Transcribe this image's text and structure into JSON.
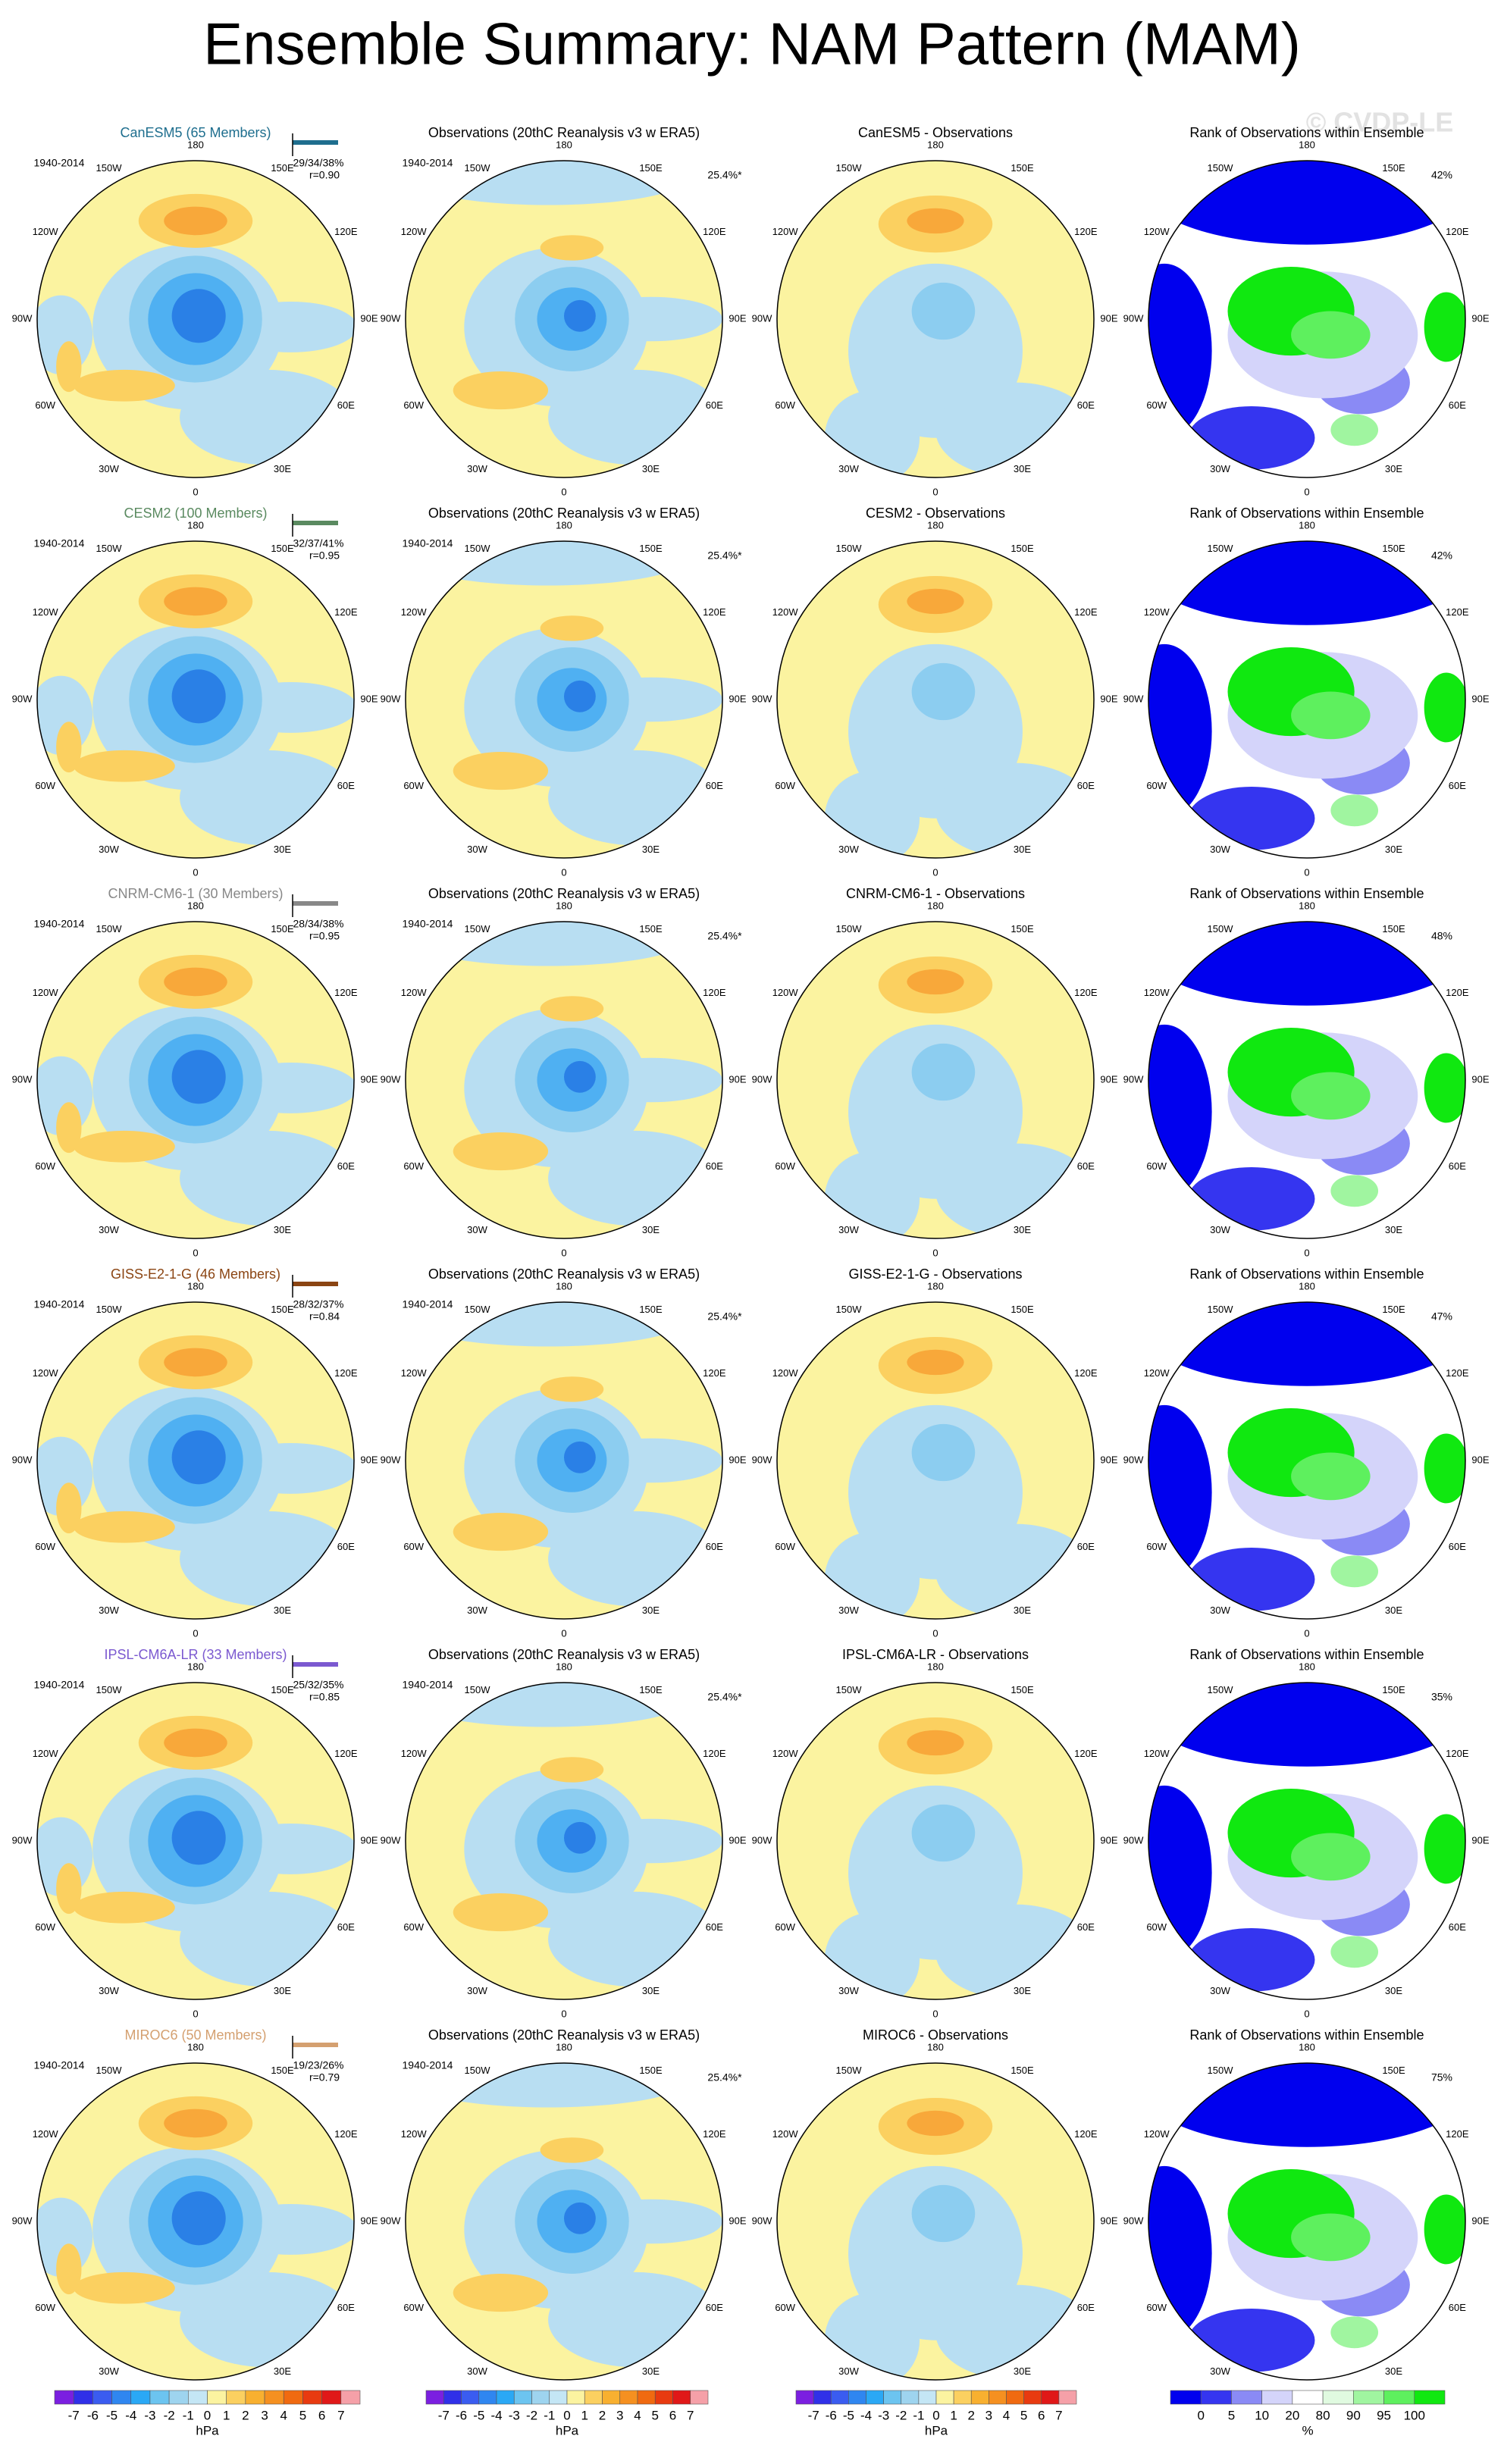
{
  "title": "Ensemble Summary: NAM Pattern (MAM)",
  "watermark": "© CVDP-LE",
  "obs_title": "Observations (20thC Reanalysis v3 w ERA5)",
  "rank_title": "Rank of Observations within Ensemble",
  "period": "1940-2014",
  "obs_pct": "25.4%*",
  "lon_labels": [
    "180",
    "150W",
    "150E",
    "120W",
    "120E",
    "90W",
    "90E",
    "60W",
    "60E",
    "30W",
    "30E",
    "0"
  ],
  "rows": [
    {
      "model": "CanESM5 (65 Members)",
      "color": "#1e6e8e",
      "stats": "29/34/38%",
      "r": "r=0.90",
      "diff_title": "CanESM5 - Observations",
      "rank_pct": "42%"
    },
    {
      "model": "CESM2 (100 Members)",
      "color": "#5a8a60",
      "stats": "32/37/41%",
      "r": "r=0.95",
      "diff_title": "CESM2 - Observations",
      "rank_pct": "42%"
    },
    {
      "model": "CNRM-CM6-1 (30 Members)",
      "color": "#888888",
      "stats": "28/34/38%",
      "r": "r=0.95",
      "diff_title": "CNRM-CM6-1 - Observations",
      "rank_pct": "48%"
    },
    {
      "model": "GISS-E2-1-G (46 Members)",
      "color": "#8b4513",
      "stats": "28/32/37%",
      "r": "r=0.84",
      "diff_title": "GISS-E2-1-G - Observations",
      "rank_pct": "47%"
    },
    {
      "model": "IPSL-CM6A-LR (33 Members)",
      "color": "#7b59d0",
      "stats": "25/32/35%",
      "r": "r=0.85",
      "diff_title": "IPSL-CM6A-LR - Observations",
      "rank_pct": "35%"
    },
    {
      "model": "MIROC6 (50 Members)",
      "color": "#d4a070",
      "stats": "19/23/26%",
      "r": "r=0.79",
      "diff_title": "MIROC6 - Observations",
      "rank_pct": "75%"
    }
  ],
  "colorbar_hpa": {
    "colors": [
      "#7b1fe0",
      "#3030e8",
      "#3a5cf0",
      "#2f86f0",
      "#2aa8f5",
      "#6cc4f0",
      "#9ed4ef",
      "#c4e6f5",
      "#fbf3a0",
      "#fbd060",
      "#f8b030",
      "#f59020",
      "#f06a10",
      "#e83a10",
      "#e01818",
      "#f5a0a8"
    ],
    "labels": [
      -7,
      -6,
      -5,
      -4,
      -3,
      -2,
      -1,
      0,
      1,
      2,
      3,
      4,
      5,
      6,
      7
    ],
    "unit": "hPa"
  },
  "colorbar_rank": {
    "colors": [
      "#0000ee",
      "#3535f0",
      "#8a8af5",
      "#d4d4fa",
      "#ffffff",
      "#e0fae0",
      "#a0f5a0",
      "#5ef05e",
      "#10e810"
    ],
    "labels": [
      0,
      5,
      10,
      20,
      80,
      90,
      95,
      100
    ],
    "unit": "%"
  }
}
